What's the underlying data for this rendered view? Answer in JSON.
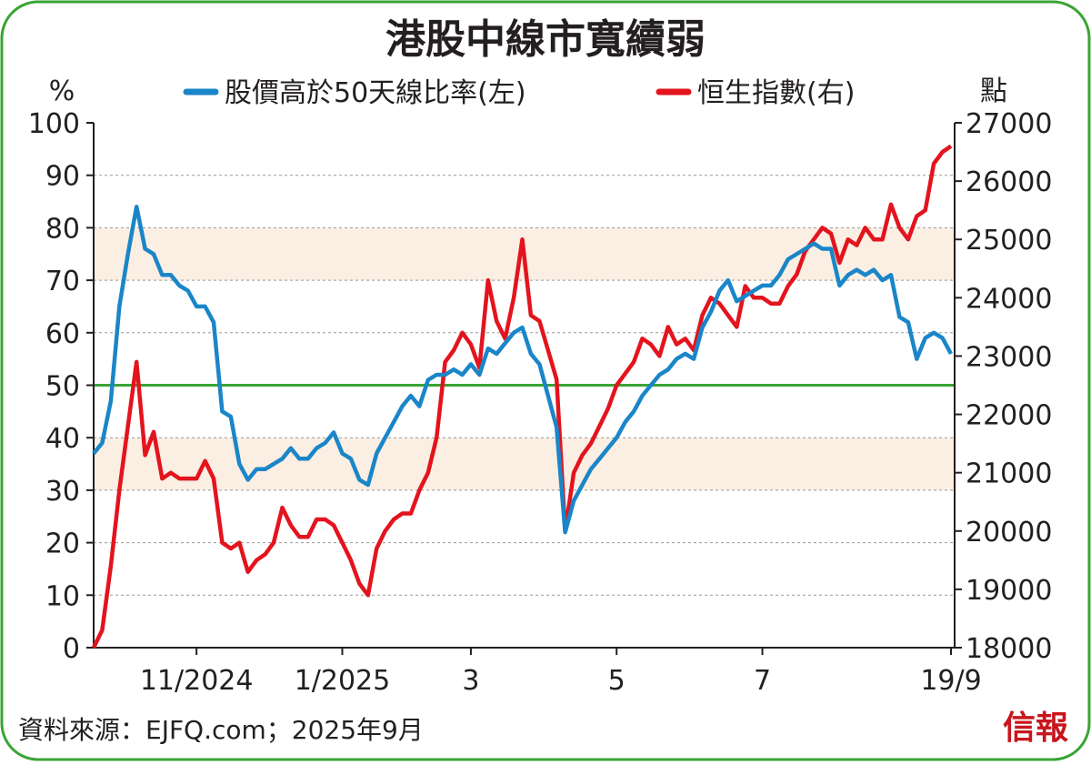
{
  "chart_data": {
    "type": "line",
    "title": "港股中線市寬續弱",
    "y_label": "%",
    "y2_label": "點",
    "source": "資料來源：EJFQ.com；2025年9月",
    "logo": "信報",
    "categories": [
      null,
      null,
      null,
      null,
      null,
      null,
      null,
      null,
      null,
      null,
      null,
      null,
      "11/2024",
      null,
      null,
      null,
      null,
      null,
      null,
      null,
      null,
      null,
      null,
      null,
      null,
      null,
      null,
      null,
      null,
      "1/2025",
      null,
      null,
      null,
      null,
      null,
      null,
      null,
      null,
      null,
      null,
      null,
      null,
      null,
      null,
      "3",
      null,
      null,
      null,
      null,
      null,
      null,
      null,
      null,
      null,
      null,
      null,
      null,
      null,
      null,
      null,
      null,
      "5",
      null,
      null,
      null,
      null,
      null,
      null,
      null,
      null,
      null,
      null,
      null,
      null,
      null,
      null,
      null,
      null,
      "7",
      null,
      null,
      null,
      null,
      null,
      null,
      null,
      null,
      null,
      null,
      null,
      null,
      null,
      null,
      null,
      null,
      null,
      null,
      null,
      null,
      null,
      "19/9"
    ],
    "series": [
      {
        "name": "股價高於50天線比率(左)",
        "color": "#1a86c8",
        "axis": "y",
        "values": [
          37,
          39,
          47,
          65,
          75,
          84,
          76,
          75,
          71,
          71,
          69,
          68,
          65,
          65,
          62,
          45,
          44,
          35,
          32,
          34,
          34,
          35,
          36,
          38,
          36,
          36,
          38,
          39,
          41,
          37,
          36,
          32,
          31,
          37,
          40,
          43,
          46,
          48,
          46,
          51,
          52,
          52,
          53,
          52,
          54,
          52,
          57,
          56,
          58,
          60,
          61,
          56,
          54,
          48,
          42,
          22,
          28,
          31,
          34,
          36,
          38,
          40,
          43,
          45,
          48,
          50,
          52,
          53,
          55,
          56,
          55,
          61,
          64,
          68,
          70,
          66,
          67,
          68,
          69,
          69,
          71,
          74,
          75,
          76,
          77,
          76,
          76,
          69,
          71,
          72,
          71,
          72,
          70,
          71,
          63,
          62,
          55,
          59,
          60,
          59,
          56
        ]
      },
      {
        "name": "恒生指數(右)",
        "color": "#e3141e",
        "axis": "y2",
        "values": [
          18000,
          18300,
          19400,
          20700,
          21800,
          22900,
          21300,
          21700,
          20900,
          21000,
          20900,
          20900,
          20900,
          21200,
          20900,
          19800,
          19700,
          19800,
          19300,
          19500,
          19600,
          19800,
          20400,
          20100,
          19900,
          19900,
          20200,
          20200,
          20100,
          19800,
          19500,
          19100,
          18900,
          19700,
          20000,
          20200,
          20300,
          20300,
          20700,
          21000,
          21600,
          22900,
          23100,
          23400,
          23200,
          22800,
          24300,
          23600,
          23300,
          24000,
          25000,
          23700,
          23600,
          23100,
          22600,
          20000,
          21000,
          21300,
          21500,
          21800,
          22100,
          22500,
          22700,
          22900,
          23300,
          23200,
          23000,
          23500,
          23200,
          23300,
          23100,
          23700,
          24000,
          23900,
          23700,
          23500,
          24200,
          24000,
          24000,
          23900,
          23900,
          24200,
          24400,
          24800,
          25000,
          25200,
          25100,
          24600,
          25000,
          24900,
          25200,
          25000,
          25000,
          25600,
          25200,
          25000,
          25400,
          25500,
          26300,
          26500,
          26600
        ]
      }
    ],
    "ylim": [
      0,
      100
    ],
    "yticks": [
      0,
      10,
      20,
      30,
      40,
      50,
      60,
      70,
      80,
      90,
      100
    ],
    "y2lim": [
      18000,
      27000
    ],
    "y2ticks": [
      18000,
      19000,
      20000,
      21000,
      22000,
      23000,
      24000,
      25000,
      26000,
      27000
    ],
    "grid": true,
    "shaded_ranges": [
      [
        30,
        40
      ],
      [
        70,
        80
      ]
    ],
    "reference_line": 50,
    "reference_color": "#3aa535",
    "shade_color": "#fbeee3"
  }
}
